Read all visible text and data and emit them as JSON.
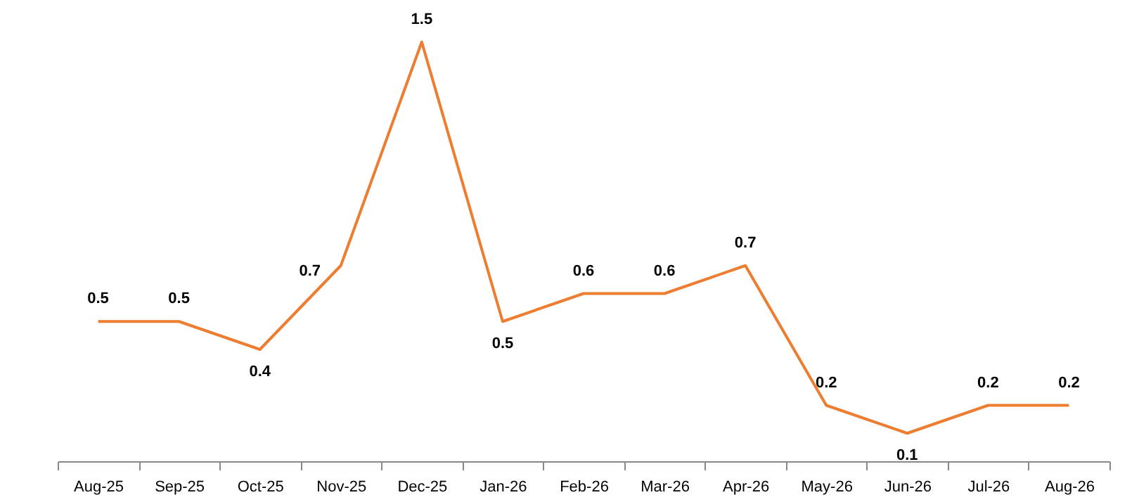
{
  "chart_data": {
    "type": "line",
    "categories": [
      "Aug-25",
      "Sep-25",
      "Oct-25",
      "Nov-25",
      "Dec-25",
      "Jan-26",
      "Feb-26",
      "Mar-26",
      "Apr-26",
      "May-26",
      "Jun-26",
      "Jul-26",
      "Aug-26"
    ],
    "series": [
      {
        "color": "#ed7d31",
        "values": [
          0.5,
          0.5,
          0.4,
          0.7,
          1.5,
          0.5,
          0.6,
          0.6,
          0.7,
          0.2,
          0.1,
          0.2,
          0.2
        ]
      }
    ],
    "data_labels": true,
    "line_style": "solid",
    "tick_labels": "x"
  }
}
